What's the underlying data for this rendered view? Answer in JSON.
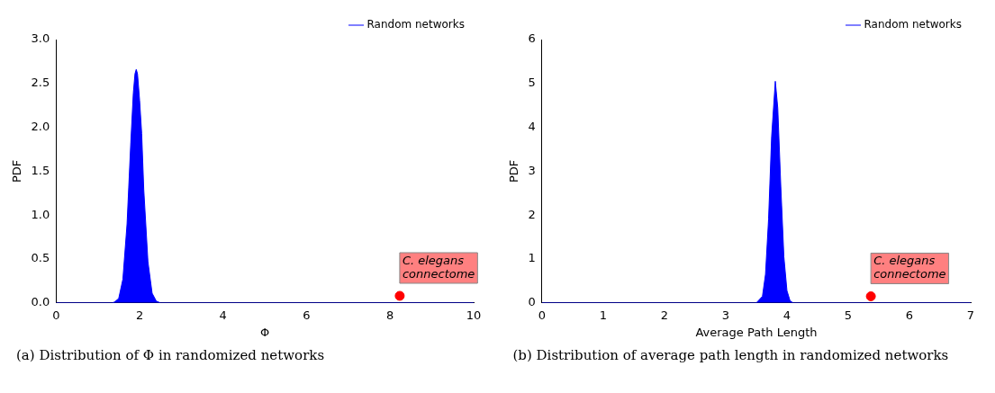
{
  "chart_data": [
    {
      "type": "area",
      "xlabel": "Φ",
      "ylabel": "PDF",
      "xlim": [
        0,
        10
      ],
      "xticks": [
        0,
        2,
        4,
        6,
        8,
        10
      ],
      "ylim": [
        0,
        3
      ],
      "yticks": [
        {
          "value": 0,
          "label": "0.0"
        },
        0.5,
        {
          "value": 1,
          "label": "1.0"
        },
        1.5,
        {
          "value": 2,
          "label": "2.0"
        },
        2.5,
        {
          "value": 3,
          "label": "3.0"
        }
      ],
      "legend": "top right",
      "grid": false,
      "series": [
        {
          "name": "Random networks",
          "color": "#0000ff",
          "x": [
            0,
            1.34,
            1.4,
            1.5,
            1.6,
            1.7,
            1.79,
            1.85,
            1.89,
            1.92,
            1.95,
            2.0,
            2.05,
            2.1,
            2.2,
            2.3,
            2.4,
            2.5,
            10
          ],
          "values": [
            0,
            0,
            0.01,
            0.05,
            0.27,
            0.9,
            1.83,
            2.39,
            2.61,
            2.66,
            2.61,
            2.31,
            1.93,
            1.29,
            0.47,
            0.11,
            0.02,
            0,
            0
          ]
        },
        {
          "type": "scatter",
          "color": "#ff0000",
          "x": [
            8.23
          ],
          "values": [
            0.08
          ]
        }
      ],
      "annotations": [
        {
          "text": "C. elegans connectome",
          "x": 8.23,
          "y": 0.08
        },
        "(a) Distribution of Φ in randomized networks"
      ]
    },
    {
      "type": "area",
      "xlabel": "Average Path Length",
      "ylabel": "PDF",
      "xlim": [
        0,
        7
      ],
      "xticks": [
        0,
        1,
        2,
        3,
        4,
        5,
        6,
        7
      ],
      "ylim": [
        0,
        6
      ],
      "yticks": [
        0,
        1,
        2,
        3,
        4,
        5,
        6
      ],
      "legend": "top right",
      "grid": false,
      "series": [
        {
          "name": "Random networks",
          "color": "#0000ff",
          "x": [
            0,
            3.5,
            3.6,
            3.65,
            3.7,
            3.75,
            3.81,
            3.85,
            3.9,
            3.95,
            4.0,
            4.05,
            4.1,
            7
          ],
          "values": [
            0,
            0,
            0.15,
            0.65,
            1.91,
            3.79,
            5.05,
            4.44,
            2.64,
            1.05,
            0.28,
            0.05,
            0,
            0
          ]
        },
        {
          "type": "scatter",
          "color": "#ff0000",
          "x": [
            5.37
          ],
          "values": [
            0.15
          ]
        }
      ],
      "annotations": [
        {
          "text": "C. elegans connectome",
          "x": 5.37,
          "y": 0.15
        },
        "(b) Distribution of average path length in randomized networks"
      ]
    }
  ]
}
